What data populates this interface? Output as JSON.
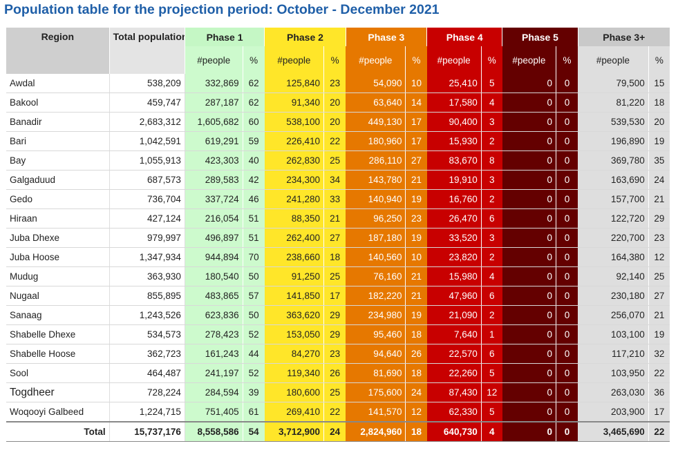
{
  "title": "Population table for the projection period: October - December 2021",
  "colors": {
    "phase1": "#cdfacd",
    "phase2": "#ffe629",
    "phase3": "#e67800",
    "phase4": "#c80000",
    "phase5": "#640000",
    "phase3plus": "#dedede",
    "title": "#1f5fa8"
  },
  "headers": {
    "region": "Region",
    "total": "Total population analysed",
    "phase1": "Phase 1",
    "phase2": "Phase 2",
    "phase3": "Phase 3",
    "phase4": "Phase 4",
    "phase5": "Phase 5",
    "phase3plus": "Phase 3+",
    "people": "#people",
    "percent": "%"
  },
  "rows": [
    {
      "region": "Awdal",
      "total": "538,209",
      "p1": "332,869",
      "p1pct": "62",
      "p2": "125,840",
      "p2pct": "23",
      "p3": "54,090",
      "p3pct": "10",
      "p4": "25,410",
      "p4pct": "5",
      "p5": "0",
      "p5pct": "0",
      "p3p": "79,500",
      "p3ppct": "15"
    },
    {
      "region": "Bakool",
      "total": "459,747",
      "p1": "287,187",
      "p1pct": "62",
      "p2": "91,340",
      "p2pct": "20",
      "p3": "63,640",
      "p3pct": "14",
      "p4": "17,580",
      "p4pct": "4",
      "p5": "0",
      "p5pct": "0",
      "p3p": "81,220",
      "p3ppct": "18"
    },
    {
      "region": "Banadir",
      "total": "2,683,312",
      "p1": "1,605,682",
      "p1pct": "60",
      "p2": "538,100",
      "p2pct": "20",
      "p3": "449,130",
      "p3pct": "17",
      "p4": "90,400",
      "p4pct": "3",
      "p5": "0",
      "p5pct": "0",
      "p3p": "539,530",
      "p3ppct": "20"
    },
    {
      "region": "Bari",
      "total": "1,042,591",
      "p1": "619,291",
      "p1pct": "59",
      "p2": "226,410",
      "p2pct": "22",
      "p3": "180,960",
      "p3pct": "17",
      "p4": "15,930",
      "p4pct": "2",
      "p5": "0",
      "p5pct": "0",
      "p3p": "196,890",
      "p3ppct": "19"
    },
    {
      "region": "Bay",
      "total": "1,055,913",
      "p1": "423,303",
      "p1pct": "40",
      "p2": "262,830",
      "p2pct": "25",
      "p3": "286,110",
      "p3pct": "27",
      "p4": "83,670",
      "p4pct": "8",
      "p5": "0",
      "p5pct": "0",
      "p3p": "369,780",
      "p3ppct": "35"
    },
    {
      "region": "Galgaduud",
      "total": "687,573",
      "p1": "289,583",
      "p1pct": "42",
      "p2": "234,300",
      "p2pct": "34",
      "p3": "143,780",
      "p3pct": "21",
      "p4": "19,910",
      "p4pct": "3",
      "p5": "0",
      "p5pct": "0",
      "p3p": "163,690",
      "p3ppct": "24"
    },
    {
      "region": "Gedo",
      "total": "736,704",
      "p1": "337,724",
      "p1pct": "46",
      "p2": "241,280",
      "p2pct": "33",
      "p3": "140,940",
      "p3pct": "19",
      "p4": "16,760",
      "p4pct": "2",
      "p5": "0",
      "p5pct": "0",
      "p3p": "157,700",
      "p3ppct": "21"
    },
    {
      "region": "Hiraan",
      "total": "427,124",
      "p1": "216,054",
      "p1pct": "51",
      "p2": "88,350",
      "p2pct": "21",
      "p3": "96,250",
      "p3pct": "23",
      "p4": "26,470",
      "p4pct": "6",
      "p5": "0",
      "p5pct": "0",
      "p3p": "122,720",
      "p3ppct": "29"
    },
    {
      "region": "Juba Dhexe",
      "total": "979,997",
      "p1": "496,897",
      "p1pct": "51",
      "p2": "262,400",
      "p2pct": "27",
      "p3": "187,180",
      "p3pct": "19",
      "p4": "33,520",
      "p4pct": "3",
      "p5": "0",
      "p5pct": "0",
      "p3p": "220,700",
      "p3ppct": "23"
    },
    {
      "region": "Juba Hoose",
      "total": "1,347,934",
      "p1": "944,894",
      "p1pct": "70",
      "p2": "238,660",
      "p2pct": "18",
      "p3": "140,560",
      "p3pct": "10",
      "p4": "23,820",
      "p4pct": "2",
      "p5": "0",
      "p5pct": "0",
      "p3p": "164,380",
      "p3ppct": "12"
    },
    {
      "region": "Mudug",
      "total": "363,930",
      "p1": "180,540",
      "p1pct": "50",
      "p2": "91,250",
      "p2pct": "25",
      "p3": "76,160",
      "p3pct": "21",
      "p4": "15,980",
      "p4pct": "4",
      "p5": "0",
      "p5pct": "0",
      "p3p": "92,140",
      "p3ppct": "25"
    },
    {
      "region": "Nugaal",
      "total": "855,895",
      "p1": "483,865",
      "p1pct": "57",
      "p2": "141,850",
      "p2pct": "17",
      "p3": "182,220",
      "p3pct": "21",
      "p4": "47,960",
      "p4pct": "6",
      "p5": "0",
      "p5pct": "0",
      "p3p": "230,180",
      "p3ppct": "27"
    },
    {
      "region": "Sanaag",
      "total": "1,243,526",
      "p1": "623,836",
      "p1pct": "50",
      "p2": "363,620",
      "p2pct": "29",
      "p3": "234,980",
      "p3pct": "19",
      "p4": "21,090",
      "p4pct": "2",
      "p5": "0",
      "p5pct": "0",
      "p3p": "256,070",
      "p3ppct": "21"
    },
    {
      "region": "Shabelle Dhexe",
      "total": "534,573",
      "p1": "278,423",
      "p1pct": "52",
      "p2": "153,050",
      "p2pct": "29",
      "p3": "95,460",
      "p3pct": "18",
      "p4": "7,640",
      "p4pct": "1",
      "p5": "0",
      "p5pct": "0",
      "p3p": "103,100",
      "p3ppct": "19"
    },
    {
      "region": "Shabelle Hoose",
      "total": "362,723",
      "p1": "161,243",
      "p1pct": "44",
      "p2": "84,270",
      "p2pct": "23",
      "p3": "94,640",
      "p3pct": "26",
      "p4": "22,570",
      "p4pct": "6",
      "p5": "0",
      "p5pct": "0",
      "p3p": "117,210",
      "p3ppct": "32"
    },
    {
      "region": "Sool",
      "total": "464,487",
      "p1": "241,197",
      "p1pct": "52",
      "p2": "119,340",
      "p2pct": "26",
      "p3": "81,690",
      "p3pct": "18",
      "p4": "22,260",
      "p4pct": "5",
      "p5": "0",
      "p5pct": "0",
      "p3p": "103,950",
      "p3ppct": "22"
    },
    {
      "region": "Togdheer",
      "total": "728,224",
      "p1": "284,594",
      "p1pct": "39",
      "p2": "180,600",
      "p2pct": "25",
      "p3": "175,600",
      "p3pct": "24",
      "p4": "87,430",
      "p4pct": "12",
      "p5": "0",
      "p5pct": "0",
      "p3p": "263,030",
      "p3ppct": "36"
    },
    {
      "region": "Woqooyi Galbeed",
      "total": "1,224,715",
      "p1": "751,405",
      "p1pct": "61",
      "p2": "269,410",
      "p2pct": "22",
      "p3": "141,570",
      "p3pct": "12",
      "p4": "62,330",
      "p4pct": "5",
      "p5": "0",
      "p5pct": "0",
      "p3p": "203,900",
      "p3ppct": "17"
    }
  ],
  "totals": {
    "region": "Total",
    "total": "15,737,176",
    "p1": "8,558,586",
    "p1pct": "54",
    "p2": "3,712,900",
    "p2pct": "24",
    "p3": "2,824,960",
    "p3pct": "18",
    "p4": "640,730",
    "p4pct": "4",
    "p5": "0",
    "p5pct": "0",
    "p3p": "3,465,690",
    "p3ppct": "22"
  }
}
